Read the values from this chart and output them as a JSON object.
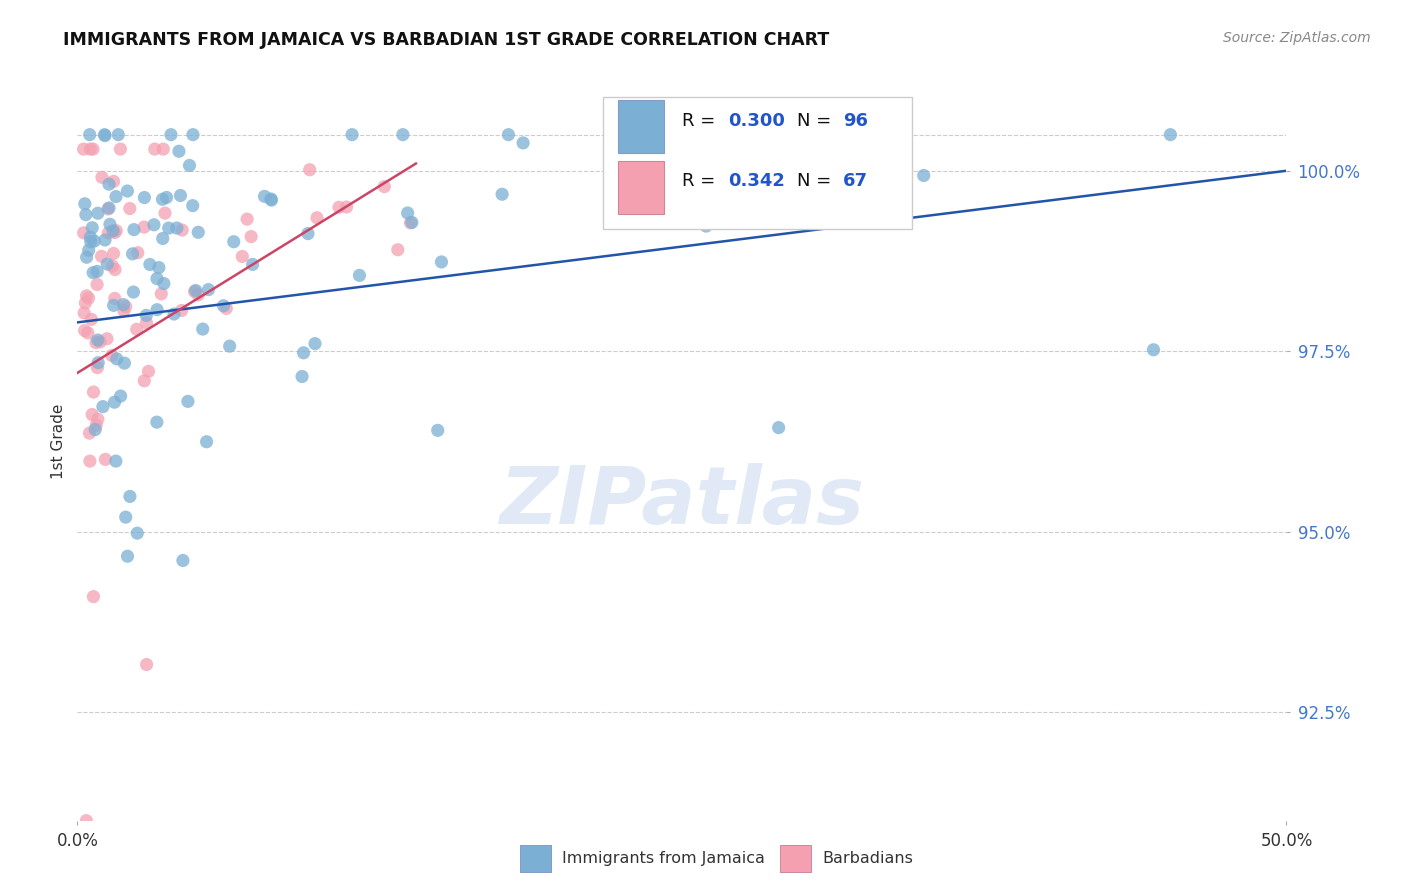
{
  "title": "IMMIGRANTS FROM JAMAICA VS BARBADIAN 1ST GRADE CORRELATION CHART",
  "source": "Source: ZipAtlas.com",
  "ylabel": "1st Grade",
  "xmin": 0.0,
  "xmax": 50.0,
  "ymin": 91.0,
  "ymax": 101.5,
  "yticks": [
    92.5,
    95.0,
    97.5,
    100.0
  ],
  "ytick_labels": [
    "92.5%",
    "95.0%",
    "97.5%",
    "100.0%"
  ],
  "blue_R": 0.3,
  "blue_N": 96,
  "pink_R": 0.342,
  "pink_N": 67,
  "blue_color": "#7bafd4",
  "pink_color": "#f4a0b0",
  "blue_line_color": "#2255aa",
  "pink_line_color": "#cc4466",
  "legend_blue_label": "Immigrants from Jamaica",
  "legend_pink_label": "Barbadians",
  "watermark": "ZIPatlas"
}
